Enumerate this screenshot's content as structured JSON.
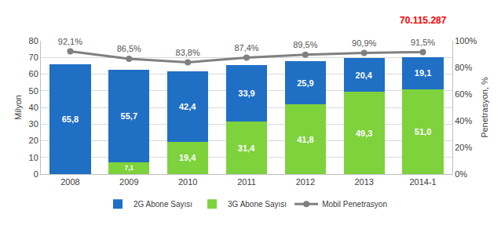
{
  "chart_data": {
    "type": "bar",
    "stacked": true,
    "data_labels": true,
    "grid": true,
    "legend": "bottom",
    "categories": [
      "2008",
      "2009",
      "2010",
      "2011",
      "2012",
      "2013",
      "2014-1"
    ],
    "y_label": "Milyon",
    "y2_label": "Penetrasyon, %",
    "ylim": [
      0,
      80
    ],
    "yticks": [
      0,
      10,
      20,
      30,
      40,
      50,
      60,
      70,
      80
    ],
    "y2lim": [
      0,
      100
    ],
    "y2ticks": [
      {
        "value": 0,
        "label": "0%"
      },
      {
        "value": 20,
        "label": "20%"
      },
      {
        "value": 40,
        "label": "40%"
      },
      {
        "value": 60,
        "label": "60%"
      },
      {
        "value": 80,
        "label": "80%"
      },
      {
        "value": 100,
        "label": "100%"
      }
    ],
    "series": [
      {
        "name": "2G Abone Sayısı",
        "type": "bar",
        "color": "#1f6fc5",
        "values": [
          65.8,
          55.7,
          42.4,
          33.9,
          25.9,
          20.4,
          19.1
        ],
        "value_labels": [
          "65,8",
          "55,7",
          "42,4",
          "33,9",
          "25,9",
          "20,4",
          "19,1"
        ]
      },
      {
        "name": "3G Abone Sayısı",
        "type": "bar",
        "color": "#7ed23b",
        "values": [
          null,
          7.1,
          19.4,
          31.4,
          41.8,
          49.3,
          51.0
        ],
        "value_labels": [
          null,
          "7,1",
          "19,4",
          "31,4",
          "41,8",
          "49,3",
          "51,0"
        ]
      },
      {
        "name": "Mobil Penetrasyon",
        "type": "line",
        "axis": "y2",
        "color": "#808080",
        "marker": "circle",
        "line_style": "solid",
        "values": [
          92.1,
          86.5,
          83.8,
          87.4,
          89.5,
          90.9,
          91.5
        ],
        "value_labels": [
          "92,1%",
          "86,5%",
          "83,8%",
          "87,4%",
          "89,5%",
          "90,9%",
          "91,5%"
        ]
      }
    ],
    "annotations": [
      {
        "text": "70.115.287",
        "x": "2014-1",
        "color": "#ff0000"
      }
    ]
  }
}
